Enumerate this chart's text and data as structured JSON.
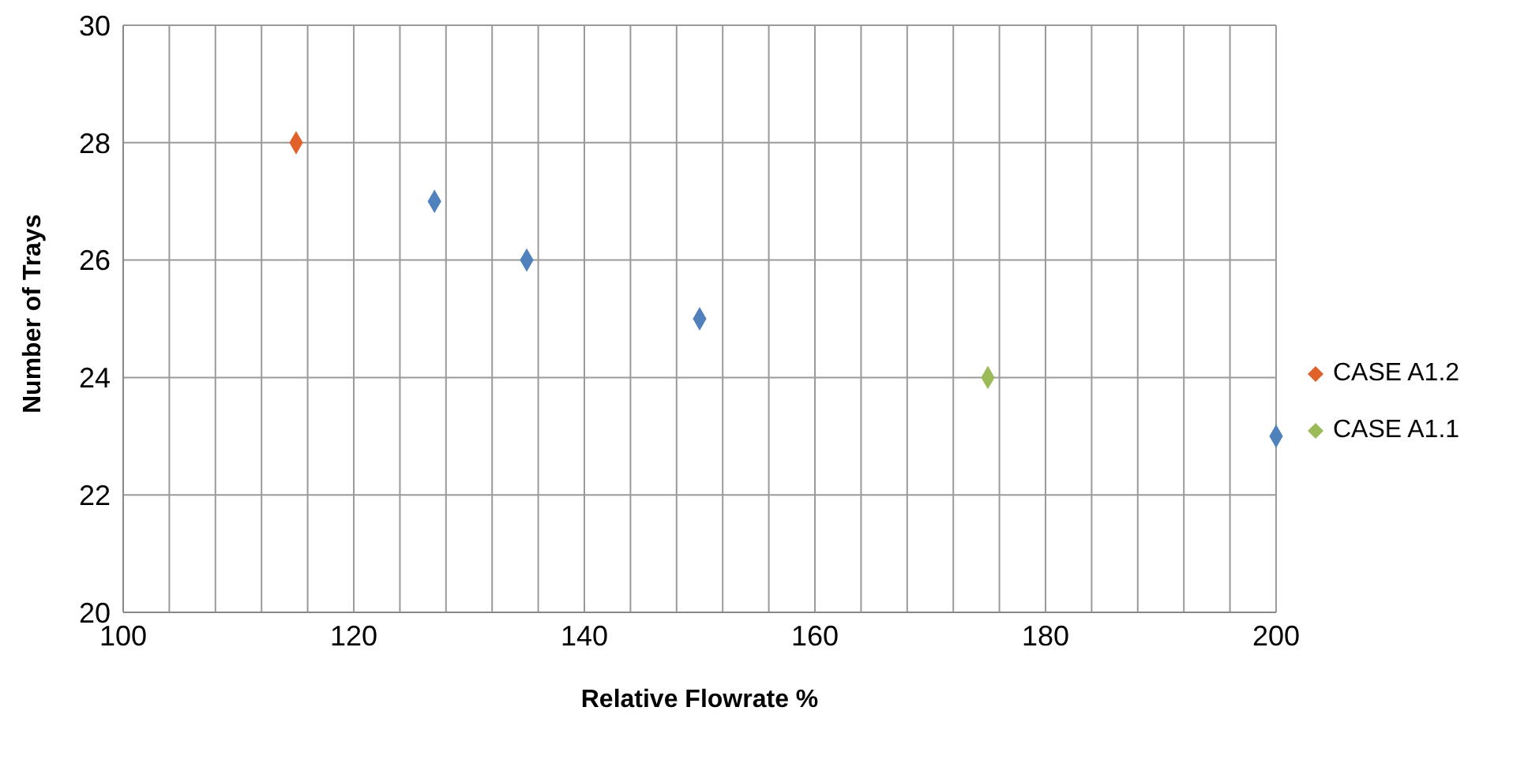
{
  "chart_data": {
    "type": "scatter",
    "xlabel": "Relative Flowrate %",
    "ylabel": "Number of Trays",
    "series": [
      {
        "color": "#4f81bd",
        "x": [
          127,
          135,
          150,
          200
        ],
        "values": [
          27,
          26,
          25,
          23
        ]
      },
      {
        "name": "CASE A1.2",
        "color": "#e0622a",
        "x": [
          115
        ],
        "values": [
          28
        ]
      },
      {
        "name": "CASE A1.1",
        "color": "#9bbb59",
        "x": [
          175
        ],
        "values": [
          24
        ]
      }
    ],
    "xlim": [
      100,
      200
    ],
    "xticks": [
      100,
      {
        "value": 104,
        "label": null
      },
      {
        "value": 108,
        "label": null
      },
      {
        "value": 112,
        "label": null
      },
      {
        "value": 116,
        "label": null
      },
      120,
      {
        "value": 124,
        "label": null
      },
      {
        "value": 128,
        "label": null
      },
      {
        "value": 132,
        "label": null
      },
      {
        "value": 136,
        "label": null
      },
      140,
      {
        "value": 144,
        "label": null
      },
      {
        "value": 148,
        "label": null
      },
      {
        "value": 152,
        "label": null
      },
      {
        "value": 156,
        "label": null
      },
      160,
      {
        "value": 164,
        "label": null
      },
      {
        "value": 168,
        "label": null
      },
      {
        "value": 172,
        "label": null
      },
      {
        "value": 176,
        "label": null
      },
      180,
      {
        "value": 184,
        "label": null
      },
      {
        "value": 188,
        "label": null
      },
      {
        "value": 192,
        "label": null
      },
      {
        "value": 196,
        "label": null
      },
      200
    ],
    "ylim": [
      20,
      30
    ],
    "yticks": [
      20,
      22,
      24,
      26,
      28,
      30
    ],
    "grid": true,
    "legend": "right",
    "marker": "diamond"
  }
}
